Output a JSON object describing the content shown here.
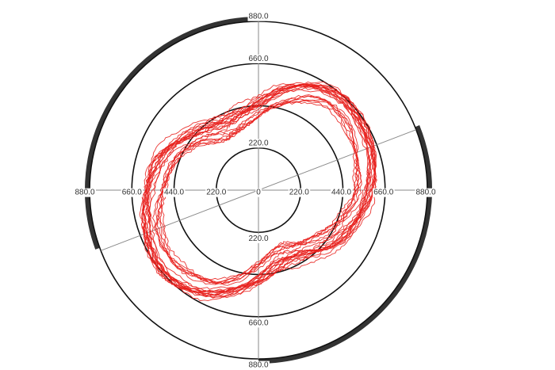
{
  "chart_data": {
    "type": "polar-line",
    "title": "",
    "rmax": 880,
    "rings": [
      220,
      440,
      660,
      880
    ],
    "axis_tick_labels": {
      "center": "0",
      "right": [
        "220.0",
        "440.0",
        "660.0",
        "880.0"
      ],
      "left": [
        "220.0",
        "440.0",
        "660.0",
        "880.0"
      ],
      "top": [
        "220.0",
        "660.0",
        "880.0"
      ],
      "bottom": [
        "220.0",
        "660.0",
        "880.0"
      ]
    },
    "diagonal_axis_angle_deg": 21,
    "highlight_arcs": [
      {
        "from_deg": 90,
        "to_deg": 200
      },
      {
        "from_deg": 270,
        "to_deg": 382
      }
    ],
    "series": [
      {
        "color": "#e8201d",
        "loops": 22,
        "profile": {
          "base_radius": 505,
          "harmonic2_amplitude": 115,
          "harmonic2_phase_deg": 30,
          "harmonic4_amplitude": 25,
          "harmonic4_phase_deg": 60,
          "radius_spread": 60
        }
      }
    ],
    "colors": {
      "ring": "#111111",
      "axis": "#888888",
      "arc": "#333333",
      "series": "#e8201d"
    }
  }
}
